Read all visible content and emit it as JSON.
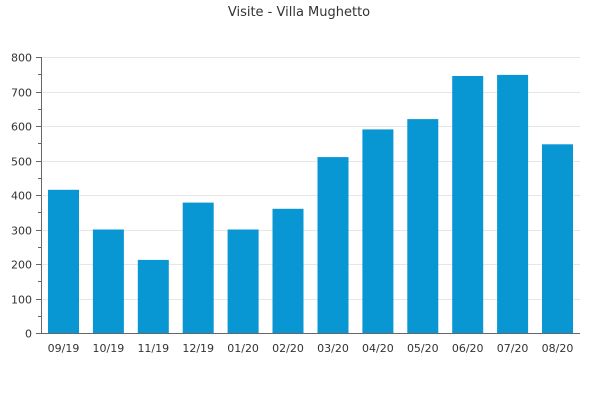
{
  "chart_data": {
    "type": "bar",
    "title": "Visite - Villa Mughetto",
    "xlabel": "",
    "ylabel": "",
    "categories": [
      "09/19",
      "10/19",
      "11/19",
      "12/19",
      "01/20",
      "02/20",
      "03/20",
      "04/20",
      "05/20",
      "06/20",
      "07/20",
      "08/20"
    ],
    "values": [
      415,
      300,
      212,
      378,
      300,
      360,
      510,
      590,
      620,
      745,
      748,
      547
    ],
    "ylim": [
      0,
      800
    ],
    "yticks": [
      0,
      100,
      200,
      300,
      400,
      500,
      600,
      700,
      800
    ],
    "grid": true,
    "legend": "none",
    "bar_color": "#0897d3"
  }
}
